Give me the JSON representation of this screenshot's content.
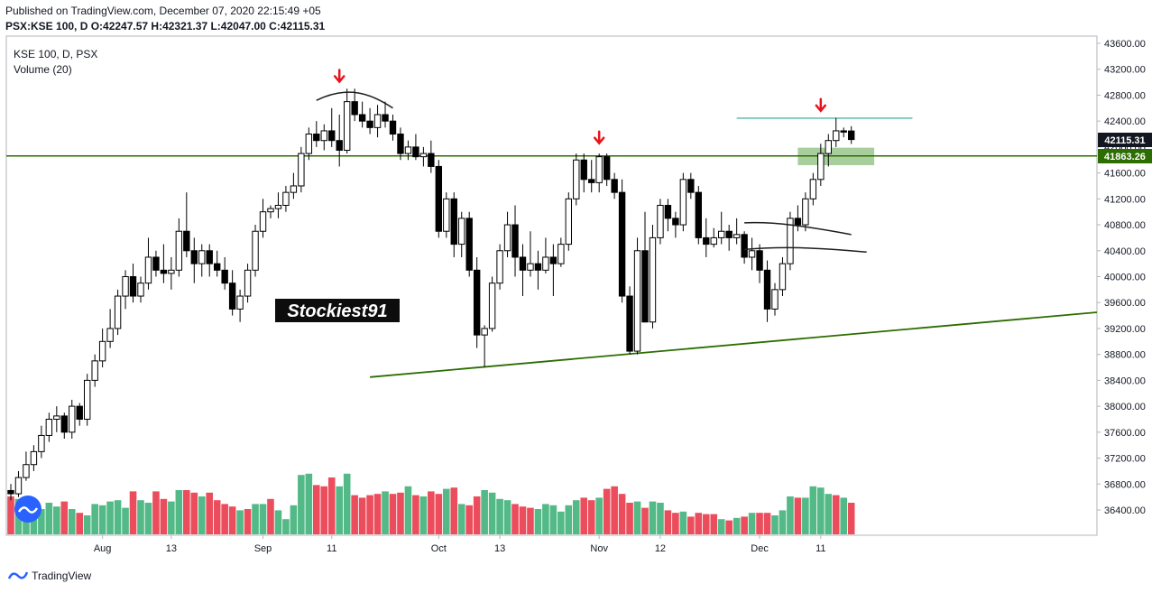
{
  "header": {
    "published": "Published on TradingView.com, December 07, 2020 22:15:49 +05",
    "ohlc": "PSX:KSE 100, D  O:42247.57  H:42321.37  L:42047.00  C:42115.31"
  },
  "legend": {
    "symbol": "KSE 100, D, PSX",
    "indicator": "Volume (20)"
  },
  "watermark": "Stockiest91",
  "footer": "TradingView",
  "price_tags": [
    {
      "value": "42115.31",
      "bg": "#131722"
    },
    {
      "value": "41863.26",
      "bg": "#2b6d00"
    }
  ],
  "colors": {
    "up_candle_fill": "#ffffff",
    "down_candle_fill": "#000000",
    "volume_up": "#53b987",
    "volume_down": "#eb4d5c",
    "support_resistance": "#2b6d00",
    "teal_line": "#26a69a",
    "arrow": "#e8141c",
    "zone": "#8bbd7c"
  },
  "chart_data": {
    "type": "candlestick",
    "symbol": "PSX:KSE 100",
    "interval": "D",
    "y_axis_labels": [
      "43600.00",
      "43200.00",
      "42800.00",
      "42400.00",
      "42000.00",
      "41600.00",
      "41200.00",
      "40800.00",
      "40400.00",
      "40000.00",
      "39600.00",
      "39200.00",
      "38800.00",
      "38400.00",
      "38000.00",
      "37600.00",
      "37200.00",
      "36800.00",
      "36400.00"
    ],
    "ylim": [
      36100,
      43700
    ],
    "x_axis_labels": [
      {
        "label": "Aug",
        "bar": 12
      },
      {
        "label": "13",
        "bar": 21
      },
      {
        "label": "Sep",
        "bar": 33
      },
      {
        "label": "11",
        "bar": 42
      },
      {
        "label": "Oct",
        "bar": 56
      },
      {
        "label": "13",
        "bar": 64
      },
      {
        "label": "Nov",
        "bar": 77
      },
      {
        "label": "12",
        "bar": 85
      },
      {
        "label": "Dec",
        "bar": 98
      },
      {
        "label": "11",
        "bar": 106
      }
    ],
    "bars_in_view": 127,
    "candles": [
      [
        0,
        36700,
        36800,
        36550,
        36650,
        0.3,
        0
      ],
      [
        1,
        36650,
        37000,
        36600,
        36900,
        0.28,
        1
      ],
      [
        2,
        36900,
        37300,
        36850,
        37100,
        0.3,
        1
      ],
      [
        3,
        37100,
        37400,
        37000,
        37300,
        0.26,
        1
      ],
      [
        4,
        37300,
        37700,
        37200,
        37550,
        0.2,
        1
      ],
      [
        5,
        37550,
        37900,
        37450,
        37800,
        0.25,
        1
      ],
      [
        6,
        37800,
        38000,
        37600,
        37850,
        0.22,
        1
      ],
      [
        7,
        37850,
        37900,
        37500,
        37600,
        0.26,
        0
      ],
      [
        8,
        37600,
        38100,
        37500,
        38000,
        0.2,
        1
      ],
      [
        9,
        38000,
        38050,
        37700,
        37800,
        0.17,
        0
      ],
      [
        10,
        37800,
        38500,
        37700,
        38400,
        0.15,
        1
      ],
      [
        11,
        38400,
        38800,
        38300,
        38700,
        0.24,
        1
      ],
      [
        12,
        38700,
        39200,
        38600,
        39000,
        0.23,
        1
      ],
      [
        13,
        39000,
        39500,
        38900,
        39200,
        0.26,
        1
      ],
      [
        14,
        39200,
        39800,
        39100,
        39700,
        0.27,
        1
      ],
      [
        15,
        39700,
        40100,
        39500,
        40000,
        0.21,
        1
      ],
      [
        16,
        40000,
        40200,
        39600,
        39700,
        0.34,
        0
      ],
      [
        17,
        39700,
        40000,
        39600,
        39900,
        0.27,
        1
      ],
      [
        18,
        39900,
        40600,
        39800,
        40300,
        0.25,
        1
      ],
      [
        19,
        40300,
        40400,
        40000,
        40100,
        0.34,
        0
      ],
      [
        20,
        40100,
        40500,
        39900,
        40050,
        0.28,
        0
      ],
      [
        21,
        40050,
        40300,
        39800,
        40100,
        0.26,
        1
      ],
      [
        22,
        40100,
        40900,
        40000,
        40700,
        0.35,
        1
      ],
      [
        23,
        40700,
        41300,
        40300,
        40400,
        0.35,
        0
      ],
      [
        24,
        40400,
        40600,
        39900,
        40200,
        0.33,
        0
      ],
      [
        25,
        40200,
        40500,
        40000,
        40400,
        0.3,
        1
      ],
      [
        26,
        40400,
        40500,
        40000,
        40200,
        0.33,
        0
      ],
      [
        27,
        40200,
        40400,
        40000,
        40100,
        0.27,
        0
      ],
      [
        28,
        40100,
        40300,
        39800,
        39900,
        0.24,
        0
      ],
      [
        29,
        39900,
        40100,
        39400,
        39500,
        0.22,
        0
      ],
      [
        30,
        39500,
        39800,
        39300,
        39700,
        0.19,
        1
      ],
      [
        31,
        39700,
        40200,
        39600,
        40100,
        0.2,
        0
      ],
      [
        32,
        40100,
        40800,
        40000,
        40700,
        0.24,
        1
      ],
      [
        33,
        40700,
        41200,
        40600,
        41000,
        0.24,
        1
      ],
      [
        34,
        41000,
        41100,
        40900,
        41050,
        0.28,
        0
      ],
      [
        35,
        41050,
        41300,
        40900,
        41100,
        0.19,
        1
      ],
      [
        36,
        41100,
        41400,
        41000,
        41300,
        0.12,
        1
      ],
      [
        37,
        41300,
        41600,
        41200,
        41400,
        0.23,
        1
      ],
      [
        38,
        41400,
        42000,
        41300,
        41900,
        0.47,
        1
      ],
      [
        39,
        41900,
        42300,
        41800,
        42200,
        0.48,
        1
      ],
      [
        40,
        42200,
        42400,
        42000,
        42100,
        0.39,
        0
      ],
      [
        41,
        42100,
        42350,
        41950,
        42250,
        0.38,
        0
      ],
      [
        42,
        42250,
        42600,
        42000,
        42100,
        0.45,
        0
      ],
      [
        43,
        42100,
        42500,
        41700,
        41950,
        0.38,
        1
      ],
      [
        44,
        41950,
        42900,
        41900,
        42700,
        0.48,
        1
      ],
      [
        45,
        42700,
        42900,
        42400,
        42500,
        0.31,
        0
      ],
      [
        46,
        42500,
        42700,
        42300,
        42400,
        0.29,
        0
      ],
      [
        47,
        42400,
        42600,
        42200,
        42300,
        0.31,
        0
      ],
      [
        48,
        42300,
        42650,
        42150,
        42500,
        0.32,
        0
      ],
      [
        49,
        42500,
        42700,
        42300,
        42400,
        0.34,
        1
      ],
      [
        50,
        42400,
        42500,
        42100,
        42200,
        0.32,
        0
      ],
      [
        51,
        42200,
        42300,
        41800,
        41900,
        0.33,
        0
      ],
      [
        52,
        41900,
        42100,
        41800,
        42000,
        0.38,
        1
      ],
      [
        53,
        42000,
        42200,
        41800,
        41850,
        0.31,
        0
      ],
      [
        54,
        41850,
        42000,
        41700,
        41900,
        0.3,
        1
      ],
      [
        55,
        41900,
        42100,
        41600,
        41700,
        0.34,
        0
      ],
      [
        56,
        41700,
        41800,
        40600,
        40700,
        0.32,
        0
      ],
      [
        57,
        40700,
        41300,
        40600,
        41200,
        0.36,
        1
      ],
      [
        58,
        41200,
        41300,
        40300,
        40500,
        0.37,
        0
      ],
      [
        59,
        40500,
        41000,
        40300,
        40900,
        0.24,
        1
      ],
      [
        60,
        40900,
        41000,
        40000,
        40100,
        0.23,
        0
      ],
      [
        61,
        40100,
        40300,
        38900,
        39100,
        0.3,
        0
      ],
      [
        62,
        39100,
        39250,
        38600,
        39200,
        0.35,
        1
      ],
      [
        63,
        39200,
        40000,
        39150,
        39900,
        0.33,
        1
      ],
      [
        64,
        39900,
        40500,
        39800,
        40400,
        0.28,
        1
      ],
      [
        65,
        40400,
        41000,
        40300,
        40800,
        0.27,
        1
      ],
      [
        66,
        40800,
        41100,
        40000,
        40300,
        0.24,
        0
      ],
      [
        67,
        40300,
        40500,
        39700,
        40100,
        0.22,
        0
      ],
      [
        68,
        40100,
        40700,
        40000,
        40200,
        0.21,
        0
      ],
      [
        69,
        40200,
        40400,
        39800,
        40100,
        0.2,
        1
      ],
      [
        70,
        40100,
        40600,
        40050,
        40300,
        0.24,
        1
      ],
      [
        71,
        40300,
        40500,
        39700,
        40200,
        0.23,
        1
      ],
      [
        72,
        40200,
        40600,
        40150,
        40500,
        0.18,
        1
      ],
      [
        73,
        40500,
        41300,
        40400,
        41200,
        0.23,
        1
      ],
      [
        74,
        41200,
        41900,
        41100,
        41800,
        0.27,
        1
      ],
      [
        75,
        41800,
        41900,
        41300,
        41500,
        0.29,
        0
      ],
      [
        76,
        41500,
        41800,
        41300,
        41450,
        0.27,
        0
      ],
      [
        77,
        41450,
        41900,
        41300,
        41850,
        0.29,
        1
      ],
      [
        78,
        41850,
        41900,
        41400,
        41500,
        0.36,
        0
      ],
      [
        79,
        41500,
        41600,
        41200,
        41300,
        0.38,
        0
      ],
      [
        80,
        41300,
        41500,
        39600,
        39700,
        0.32,
        0
      ],
      [
        81,
        39700,
        39850,
        38800,
        38850,
        0.25,
        0
      ],
      [
        82,
        38850,
        40600,
        38800,
        40400,
        0.26,
        1
      ],
      [
        83,
        40400,
        41000,
        39300,
        39300,
        0.21,
        0
      ],
      [
        84,
        39300,
        40800,
        39200,
        40600,
        0.26,
        1
      ],
      [
        85,
        40600,
        41200,
        40500,
        41100,
        0.25,
        1
      ],
      [
        86,
        41100,
        41200,
        40700,
        40900,
        0.19,
        0
      ],
      [
        87,
        40900,
        41000,
        40600,
        40800,
        0.17,
        0
      ],
      [
        88,
        40800,
        41600,
        40700,
        41500,
        0.18,
        1
      ],
      [
        89,
        41500,
        41600,
        41200,
        41300,
        0.14,
        0
      ],
      [
        90,
        41300,
        41400,
        40500,
        40600,
        0.17,
        0
      ],
      [
        91,
        40600,
        40900,
        40300,
        40500,
        0.16,
        0
      ],
      [
        92,
        40500,
        40750,
        40450,
        40600,
        0.16,
        0
      ],
      [
        93,
        40600,
        41000,
        40500,
        40700,
        0.12,
        1
      ],
      [
        94,
        40700,
        40800,
        40400,
        40600,
        0.11,
        0
      ],
      [
        95,
        40600,
        40900,
        40500,
        40650,
        0.13,
        1
      ],
      [
        96,
        40650,
        40700,
        40200,
        40300,
        0.14,
        0
      ],
      [
        97,
        40300,
        40600,
        40100,
        40400,
        0.17,
        1
      ],
      [
        98,
        40400,
        40500,
        39900,
        40100,
        0.17,
        0
      ],
      [
        99,
        40100,
        40250,
        39300,
        39500,
        0.17,
        0
      ],
      [
        100,
        39500,
        39900,
        39400,
        39800,
        0.15,
        1
      ],
      [
        101,
        39800,
        40300,
        39700,
        40200,
        0.19,
        1
      ],
      [
        102,
        40200,
        41000,
        40100,
        40900,
        0.3,
        1
      ],
      [
        103,
        40900,
        41100,
        40700,
        40800,
        0.29,
        0
      ],
      [
        104,
        40800,
        41300,
        40700,
        41200,
        0.29,
        1
      ],
      [
        105,
        41200,
        41600,
        41100,
        41500,
        0.38,
        1
      ],
      [
        106,
        41500,
        42050,
        41400,
        41900,
        0.37,
        1
      ],
      [
        107,
        41900,
        42200,
        41700,
        42100,
        0.32,
        1
      ],
      [
        108,
        42100,
        42450,
        42000,
        42250,
        0.31,
        0
      ],
      [
        109,
        42250,
        42300,
        42150,
        42230,
        0.29,
        1
      ],
      [
        110,
        42247.57,
        42321.37,
        42047.0,
        42115.31,
        0.25,
        0
      ]
    ],
    "candle_layout": "bar, open, high, low, close, volume_rel (0-1), volume_up (1 green / 0 red)",
    "drawings": {
      "horizontal_support": 41863.26,
      "resistance_segment": {
        "from_bar": 95,
        "to_bar": 118,
        "price": 42445
      },
      "trendline": {
        "from": {
          "bar": 47,
          "price": 38450
        },
        "to": {
          "bar": 126,
          "price": 39280
        }
      },
      "zone": {
        "from_bar": 103,
        "to_bar": 113,
        "top": 41990,
        "bottom": 41720
      },
      "arrows": [
        {
          "bar": 43,
          "price": 43050
        },
        {
          "bar": 77,
          "price": 42100
        },
        {
          "bar": 106,
          "price": 42600
        }
      ],
      "arcs": [
        [
          [
            40,
            42720
          ],
          [
            44,
            42950
          ],
          [
            47,
            42840
          ],
          [
            50,
            42600
          ]
        ],
        [
          [
            96,
            40830
          ],
          [
            100,
            40850
          ],
          [
            104,
            40780
          ],
          [
            110,
            40650
          ]
        ],
        [
          [
            96,
            40420
          ],
          [
            101,
            40470
          ],
          [
            105,
            40450
          ],
          [
            112,
            40380
          ]
        ]
      ]
    },
    "title": "",
    "xlabel": "",
    "ylabel": ""
  }
}
